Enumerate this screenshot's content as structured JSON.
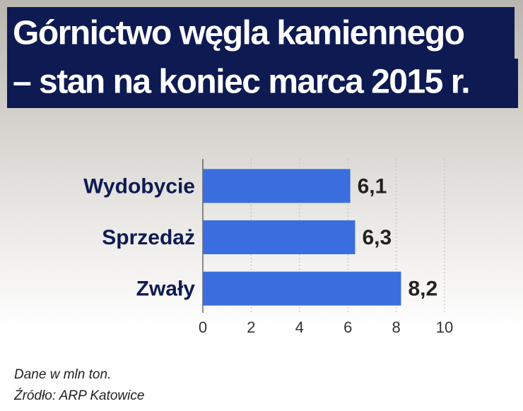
{
  "chart_data": {
    "type": "hbar",
    "title": [
      "Górnictwo węgla kamiennego",
      "– stan na koniec marca 2015 r."
    ],
    "categories": [
      "Wydobycie",
      "Sprzedaż",
      "Zwały"
    ],
    "values": [
      6.1,
      6.3,
      8.2
    ],
    "value_labels": [
      "6,1",
      "6,3",
      "8,2"
    ],
    "color": "#3a6ede",
    "xlim": [
      0,
      10
    ],
    "xticks": [
      0,
      2,
      4,
      6,
      8,
      10
    ],
    "grid": true,
    "notes": [
      "Dane w mln ton.",
      "Źródło: ARP Katowice"
    ]
  }
}
